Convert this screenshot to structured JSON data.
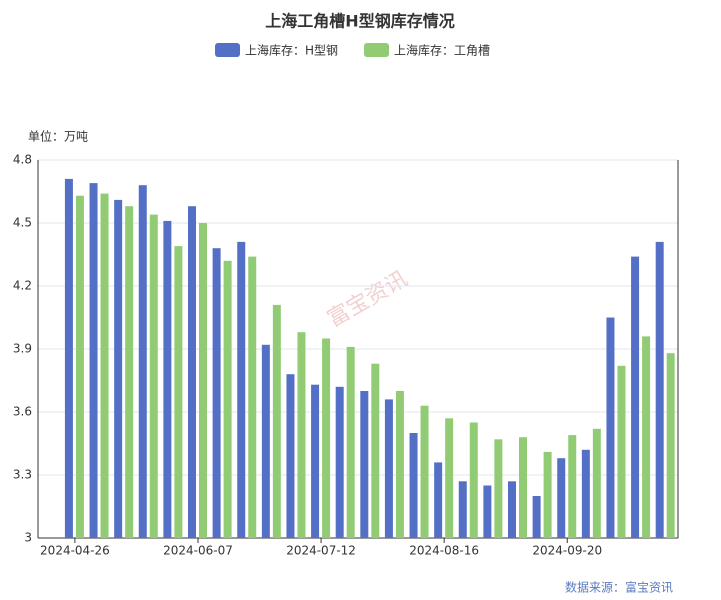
{
  "chart_data": {
    "type": "bar",
    "title": "上海工角槽H型钢库存情况",
    "y_axis_label": "单位：万吨",
    "source": "数据来源：富宝资讯",
    "watermark": "富宝资讯",
    "categories": [
      null,
      "2024-04-26",
      null,
      null,
      null,
      null,
      "2024-06-07",
      null,
      null,
      null,
      null,
      "2024-07-12",
      null,
      null,
      null,
      null,
      "2024-08-16",
      null,
      null,
      null,
      null,
      "2024-09-20",
      null,
      null,
      null,
      null
    ],
    "series": [
      {
        "name": "上海库存：H型钢",
        "color": "#5470c6",
        "values": [
          null,
          4.71,
          4.69,
          4.61,
          4.68,
          4.51,
          4.58,
          4.38,
          4.41,
          3.92,
          3.78,
          3.73,
          3.72,
          3.7,
          3.66,
          3.5,
          3.36,
          3.27,
          3.25,
          3.27,
          3.2,
          3.38,
          3.42,
          4.05,
          4.34,
          4.41
        ]
      },
      {
        "name": "上海库存：工角槽",
        "color": "#91cc75",
        "values": [
          null,
          4.63,
          4.64,
          4.58,
          4.54,
          4.39,
          4.5,
          4.32,
          4.34,
          4.11,
          3.98,
          3.95,
          3.91,
          3.83,
          3.7,
          3.63,
          3.57,
          3.55,
          3.47,
          3.48,
          3.41,
          3.49,
          3.52,
          3.82,
          3.96,
          3.88
        ]
      }
    ],
    "ylim": [
      3,
      4.8
    ],
    "yticks": [
      3,
      3.3,
      3.6,
      3.9,
      4.2,
      4.5,
      4.8
    ],
    "grid": true
  }
}
